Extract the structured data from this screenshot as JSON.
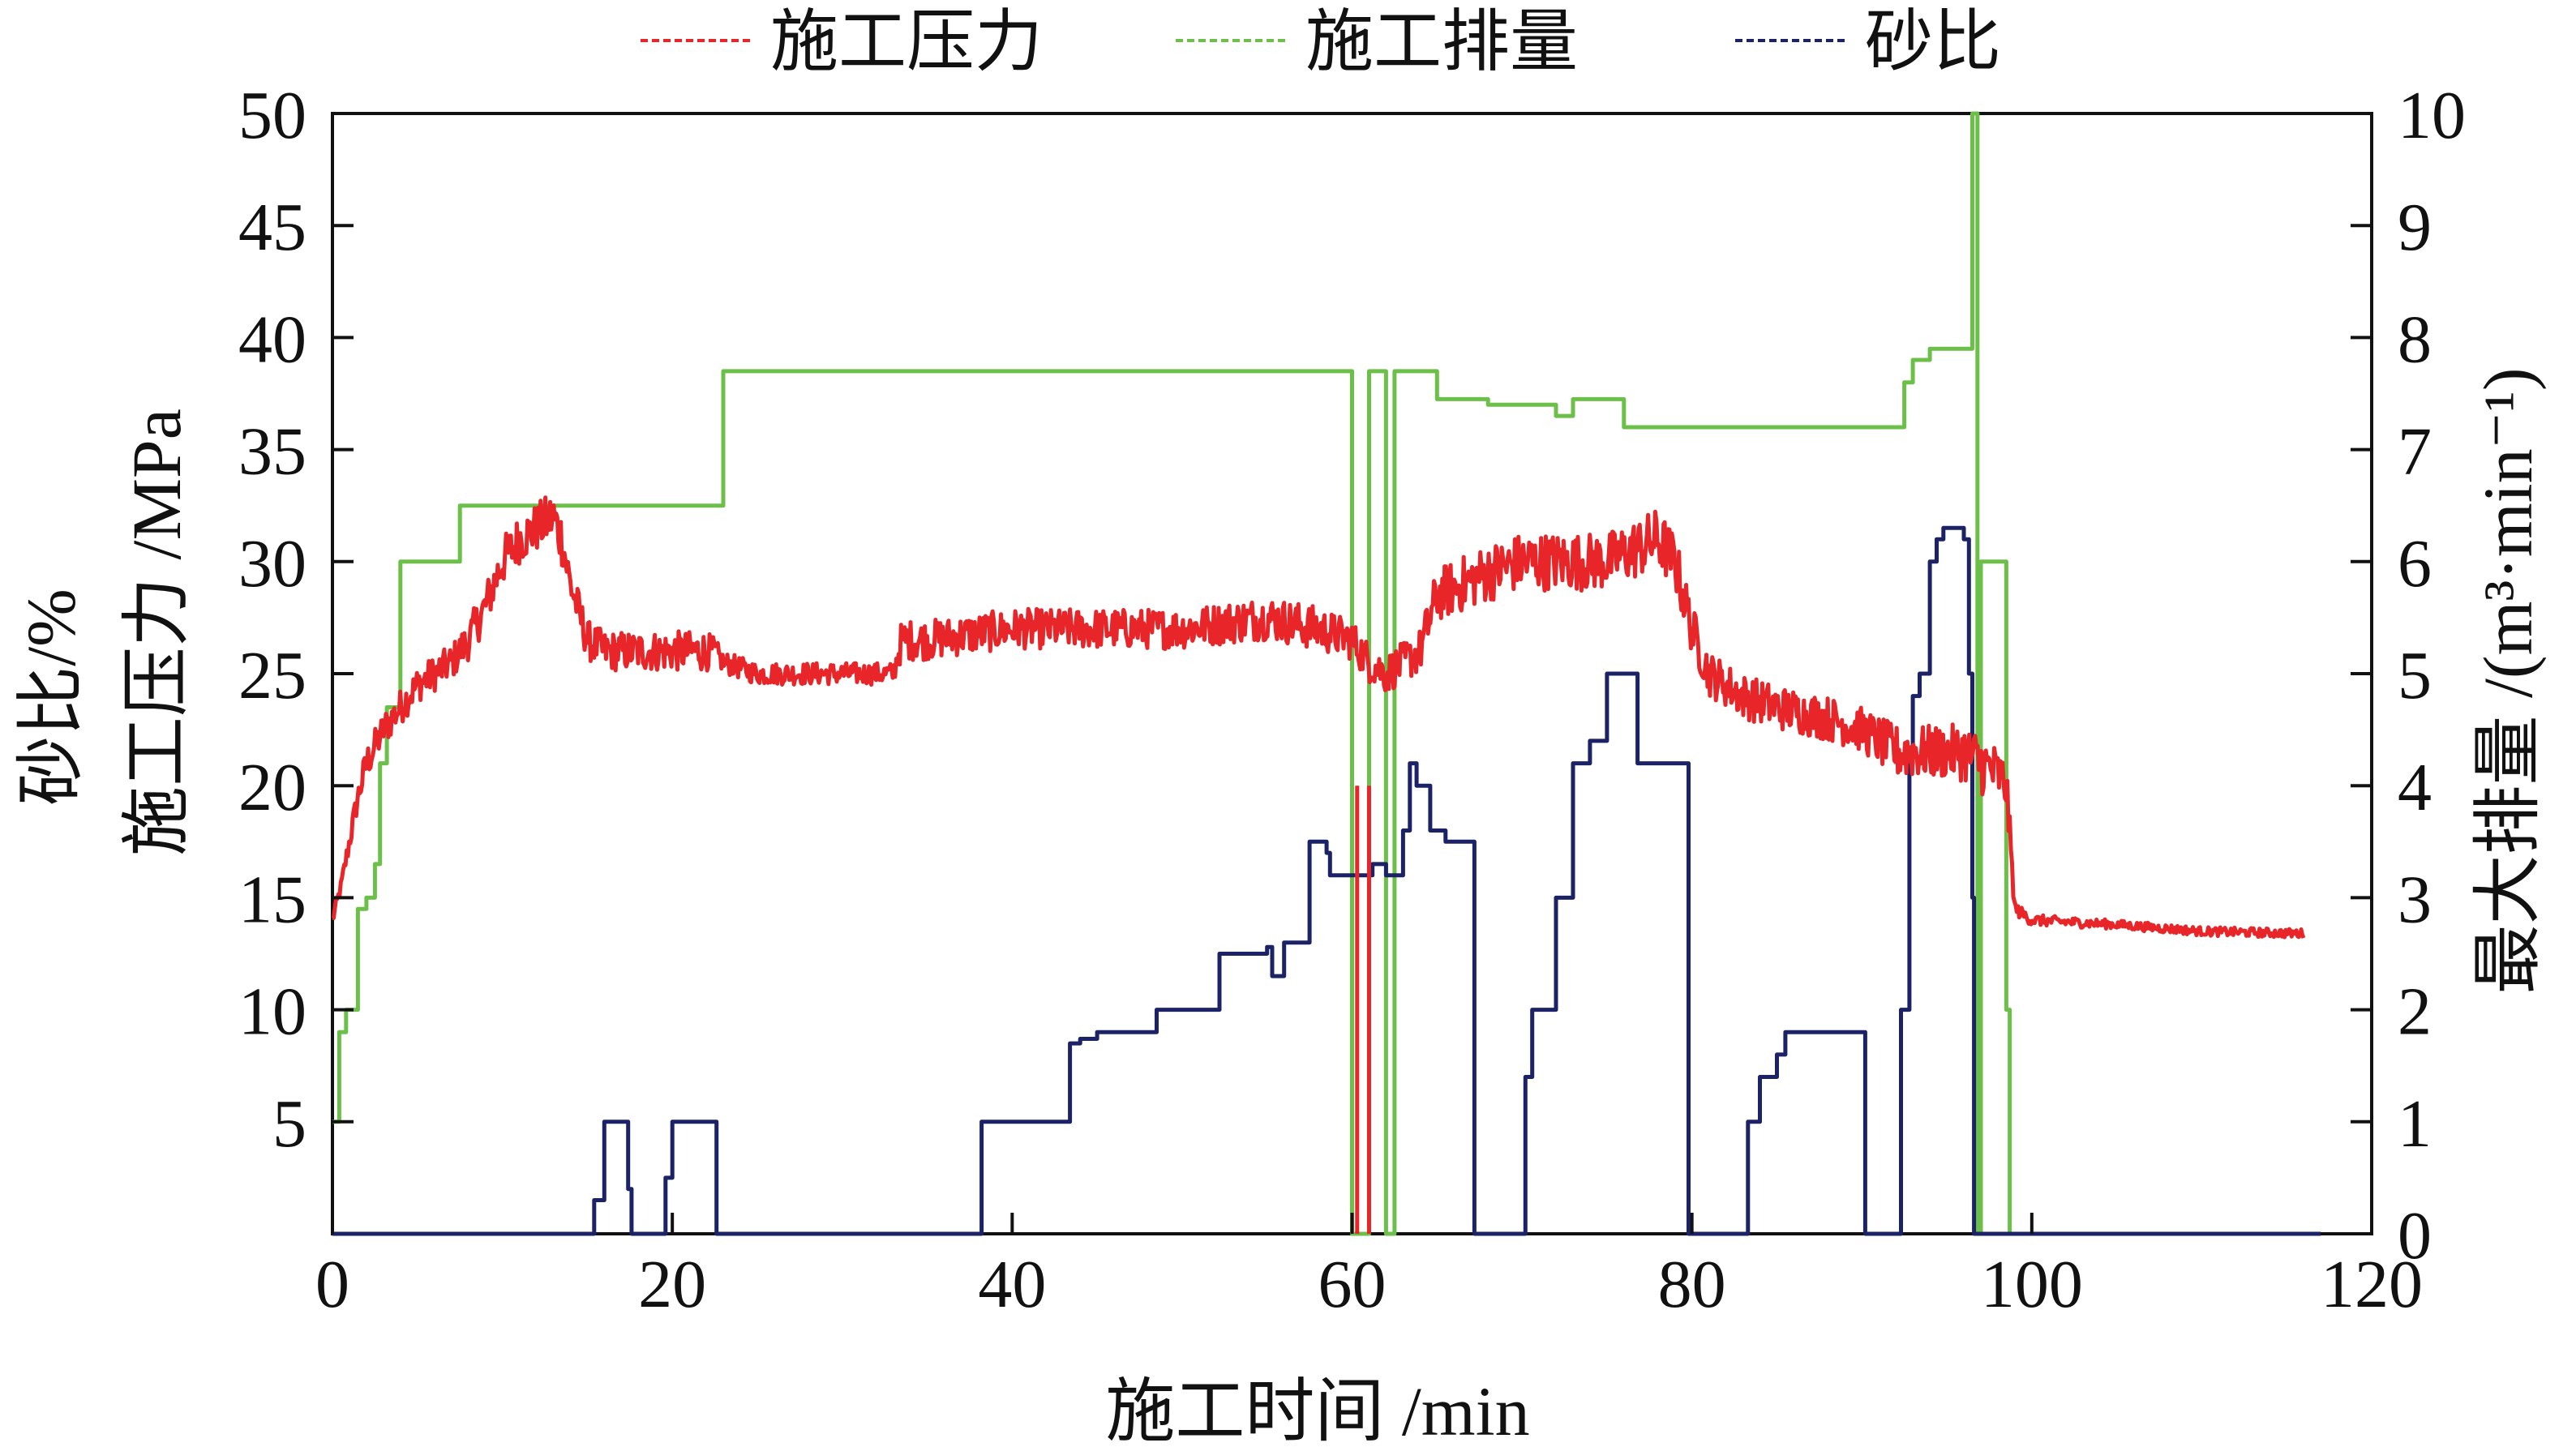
{
  "chart_data": {
    "type": "line",
    "xlabel": "施工时间 /min",
    "ylabel_left": [
      "砂比/%",
      "施工压力 /MPa"
    ],
    "ylabel_right": "最大排量 /(m³·min⁻¹)",
    "xlim": [
      0,
      120
    ],
    "ylim_left": [
      0,
      50
    ],
    "ylim_right": [
      0,
      10
    ],
    "x_ticks": [
      0,
      20,
      40,
      60,
      80,
      100,
      120
    ],
    "y_ticks_left": [
      5,
      10,
      15,
      20,
      25,
      30,
      35,
      40,
      45,
      50
    ],
    "y_ticks_right": [
      0,
      1,
      2,
      3,
      4,
      5,
      6,
      7,
      8,
      9,
      10
    ],
    "grid": false,
    "legend_position": "top",
    "colors": {
      "pressure": "#e8262a",
      "rate": "#6cc04a",
      "sand": "#1b2366",
      "axis": "#111111"
    },
    "series": [
      {
        "name": "施工压力",
        "axis": "left",
        "style": "noisy-line",
        "x": [
          0,
          0.5,
          1,
          1.5,
          2,
          3,
          4,
          5,
          6,
          7,
          8,
          9,
          10,
          11,
          12,
          13,
          13.5,
          14,
          15,
          16,
          18,
          20,
          22,
          22.5,
          23,
          25,
          28,
          30,
          32,
          33,
          33.5,
          35,
          40,
          45,
          50,
          55,
          58,
          60,
          61,
          62,
          63,
          64,
          65,
          68,
          70,
          72,
          75,
          78,
          79,
          80,
          81,
          83,
          85,
          88,
          90,
          92,
          94,
          95,
          96,
          97,
          98,
          98.5,
          99,
          100,
          105,
          110,
          116
        ],
        "y": [
          14,
          15.5,
          17.5,
          19.5,
          21,
          22.5,
          23.5,
          24.5,
          25,
          25.5,
          26.5,
          28,
          30,
          31,
          31.5,
          32,
          31,
          29,
          26.5,
          26,
          26,
          26,
          26,
          26,
          25.5,
          25,
          25,
          25,
          25,
          25,
          26.5,
          26.5,
          27,
          27,
          27,
          27.5,
          27,
          26.5,
          25.5,
          25,
          25.5,
          26,
          28.5,
          29.5,
          30,
          30,
          30,
          31,
          30,
          27,
          25,
          24,
          23.5,
          23,
          22.5,
          21.5,
          21.5,
          21.5,
          21.5,
          21,
          20.5,
          20,
          14.5,
          14,
          13.8,
          13.5,
          13.4
        ],
        "noise": [
          0.3,
          0.3,
          0.5,
          0.6,
          0.8,
          0.8,
          0.8,
          0.8,
          0.8,
          0.8,
          0.9,
          1,
          1.1,
          1.1,
          1.1,
          1.2,
          1.2,
          1,
          0.9,
          0.9,
          0.9,
          0.9,
          0.9,
          0.6,
          0.5,
          0.5,
          0.5,
          0.5,
          0.5,
          0.5,
          0.9,
          0.9,
          0.9,
          0.9,
          0.9,
          1,
          1,
          0.9,
          0.9,
          0.9,
          0.9,
          1,
          1.2,
          1.3,
          1.3,
          1.3,
          1.3,
          1.4,
          1.3,
          1.1,
          1,
          1,
          1,
          1,
          1,
          1.2,
          1.2,
          1.2,
          1.3,
          1.4,
          1.3,
          1.2,
          0.3,
          0.25,
          0.2,
          0.2,
          0.2
        ],
        "spikes": [
          [
            60.3,
            0,
            20
          ],
          [
            61,
            0,
            20
          ]
        ]
      },
      {
        "name": "施工排量",
        "axis": "right",
        "style": "step",
        "x": [
          0,
          0.4,
          0.8,
          1.5,
          2,
          2.5,
          2.8,
          3.2,
          4,
          6,
          7.5,
          10,
          20,
          22.5,
          23,
          30,
          40,
          50,
          59,
          59.6,
          60,
          61,
          61.2,
          62,
          62.5,
          64.5,
          65,
          68,
          70,
          71.5,
          72,
          73,
          75,
          76,
          80,
          85,
          88,
          90,
          92,
          92.5,
          93,
          94,
          94.5,
          96,
          96.5,
          96.6,
          96.8,
          97,
          97.5,
          98.2,
          98.5,
          98.7
        ],
        "y": [
          1,
          1.8,
          2,
          2.9,
          3,
          3.3,
          4.2,
          4.7,
          6,
          6,
          6.5,
          6.5,
          6.5,
          6.5,
          7.7,
          7.7,
          7.7,
          7.7,
          7.7,
          7.7,
          0,
          7.7,
          7.7,
          0,
          7.7,
          7.7,
          7.45,
          7.4,
          7.4,
          7.4,
          7.3,
          7.45,
          7.45,
          7.2,
          7.2,
          7.2,
          7.2,
          7.2,
          7.2,
          7.6,
          7.8,
          7.9,
          7.9,
          7.9,
          10,
          10,
          0,
          6,
          6,
          6,
          2,
          0
        ]
      },
      {
        "name": "砂比",
        "axis": "left",
        "style": "step",
        "x": [
          0,
          15,
          15.4,
          16,
          16.6,
          17.4,
          17.6,
          19.3,
          19.6,
          20,
          22.5,
          22.6,
          38,
          38.2,
          43,
          43.4,
          44,
          45,
          48,
          48.5,
          52,
          52.2,
          55,
          55.3,
          56,
          57.2,
          57.5,
          58.5,
          58.7,
          59.2,
          61.2,
          62,
          63,
          63.4,
          63.8,
          64.2,
          64.6,
          65.5,
          67,
          67.2,
          69.8,
          70.2,
          70.6,
          72,
          73,
          74,
          75,
          76,
          76.8,
          79.5,
          79.8,
          83,
          83.3,
          84,
          85,
          85.5,
          86,
          90,
          90.2,
          92,
          92.3,
          92.8,
          93,
          93.4,
          94,
          94.4,
          94.8,
          95.5,
          96,
          96.3,
          96.5,
          96.6,
          117
        ],
        "y": [
          0,
          0,
          1.5,
          5,
          5,
          2,
          0,
          0,
          2.5,
          5,
          5,
          0,
          0,
          5,
          5,
          8.5,
          8.7,
          9,
          9,
          10,
          10,
          12.5,
          12.8,
          11.5,
          13,
          13,
          17.5,
          17,
          16,
          16,
          16.5,
          16,
          18,
          21,
          20,
          20,
          18,
          17.5,
          17.5,
          0,
          0,
          7,
          10,
          15,
          21,
          22,
          25,
          25,
          21,
          21,
          0,
          0,
          5,
          7,
          8,
          9,
          9,
          9,
          0,
          0,
          10,
          21,
          24,
          25,
          30,
          31,
          31.5,
          31.5,
          31,
          25,
          15,
          0,
          0
        ]
      }
    ]
  }
}
